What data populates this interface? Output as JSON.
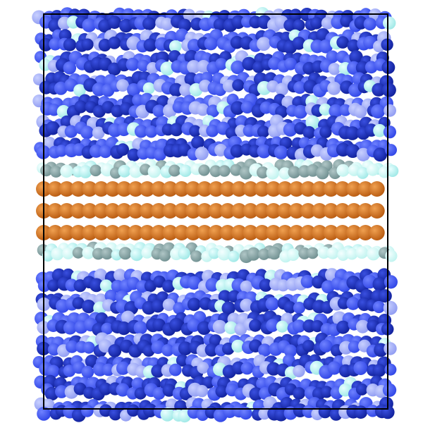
{
  "scene": {
    "description_visible_text": "",
    "colors": {
      "background": "#ffffff",
      "box_outline": "#000000",
      "metal_atom": "#b85a10",
      "metal_atom_highlight": "#f0a050",
      "interface_atom_light": "#bff3ef",
      "interface_atom_grey": "#6f8f90",
      "bulk_atom_dark": "#10209a",
      "bulk_atom_mid": "#2f45e6",
      "bulk_atom_light": "#8f9bf2",
      "bulk_atom_cyan": "#9ee8e6"
    },
    "metal_layer_count": 3,
    "upper_bulk_layer_count": 7,
    "lower_bulk_layer_count": 7,
    "interface_layer_count": 2
  }
}
